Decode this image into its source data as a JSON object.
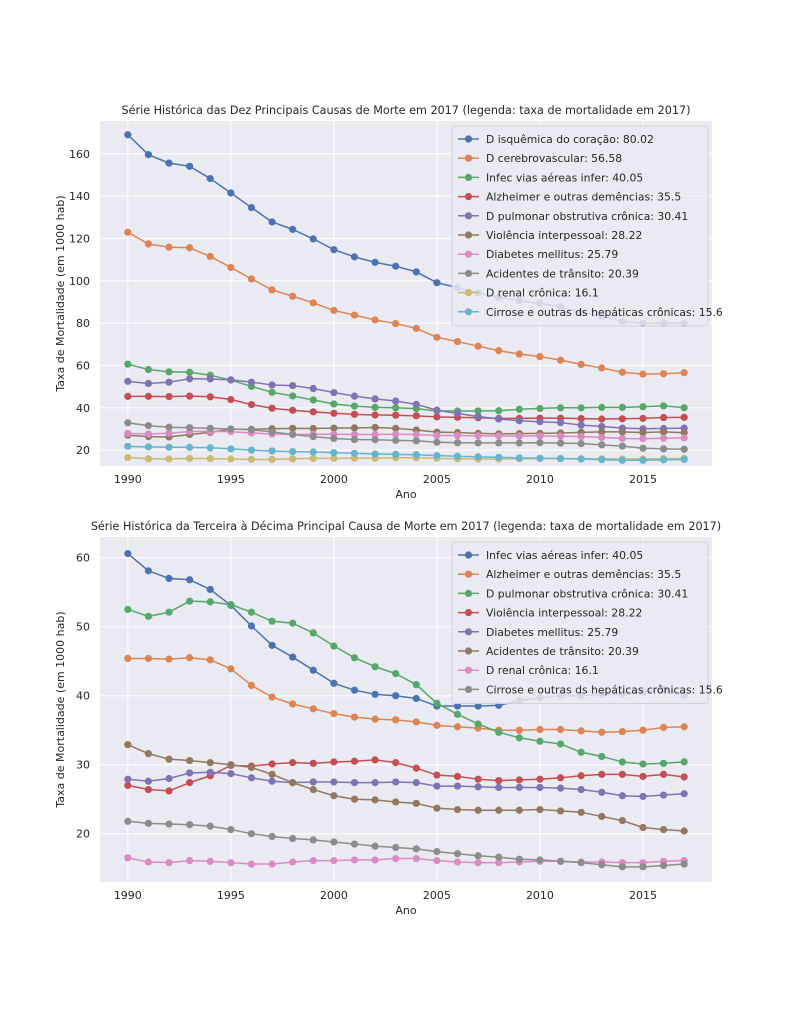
{
  "chart_data": [
    {
      "type": "line",
      "title": "Série Histórica das Dez Principais Causas de Morte em 2017 (legenda: taxa de mortalidade em 2017)",
      "xlabel": "Ano",
      "ylabel": "Taxa de Mortalidade (em 1000 hab)",
      "xlim": [
        1988.65,
        2018.35
      ],
      "ylim": [
        12.5,
        175.5
      ],
      "xticks": [
        1990,
        1995,
        2000,
        2005,
        2010,
        2015
      ],
      "yticks": [
        20,
        40,
        60,
        80,
        100,
        120,
        140,
        160
      ],
      "grid": true,
      "legend_position": "upper right",
      "x": [
        1990,
        1991,
        1992,
        1993,
        1994,
        1995,
        1996,
        1997,
        1998,
        1999,
        2000,
        2001,
        2002,
        2003,
        2004,
        2005,
        2006,
        2007,
        2008,
        2009,
        2010,
        2011,
        2012,
        2013,
        2014,
        2015,
        2016,
        2017
      ],
      "series": [
        {
          "name": "D isquêmica do coração: 80.02",
          "color": "#4c72b0",
          "values": [
            169,
            159.6,
            155.6,
            154.1,
            148.3,
            141.5,
            134.6,
            127.8,
            124.3,
            119.8,
            114.7,
            111.3,
            108.7,
            106.9,
            104.2,
            99.1,
            96.8,
            94.2,
            92.2,
            90.6,
            89.3,
            87.7,
            85.1,
            83.2,
            80.8,
            79.9,
            80.0,
            80.02
          ]
        },
        {
          "name": "D cerebrovascular: 56.58",
          "color": "#dd8452",
          "values": [
            122.9,
            117.4,
            115.9,
            115.6,
            111.5,
            106.3,
            100.9,
            95.7,
            92.7,
            89.6,
            86.0,
            83.8,
            81.5,
            79.8,
            77.5,
            73.3,
            71.3,
            69.1,
            67.0,
            65.4,
            64.2,
            62.5,
            60.5,
            58.8,
            56.8,
            55.9,
            56.1,
            56.58
          ]
        },
        {
          "name": "Infec vias aéreas infer: 40.05",
          "color": "#55a868",
          "values": [
            60.6,
            58.1,
            57.0,
            56.8,
            55.4,
            53.1,
            50.1,
            47.3,
            45.6,
            43.7,
            41.8,
            40.8,
            40.2,
            40.0,
            39.6,
            38.5,
            38.5,
            38.5,
            38.6,
            39.3,
            39.7,
            40.0,
            40.0,
            40.2,
            40.2,
            40.5,
            40.9,
            40.05
          ]
        },
        {
          "name": "Alzheimer e outras demências: 35.5",
          "color": "#c44e52",
          "values": [
            45.4,
            45.4,
            45.3,
            45.5,
            45.2,
            43.9,
            41.5,
            39.8,
            38.8,
            38.1,
            37.4,
            36.9,
            36.6,
            36.5,
            36.2,
            35.7,
            35.5,
            35.3,
            35.0,
            35.0,
            35.1,
            35.1,
            34.9,
            34.7,
            34.8,
            35.0,
            35.4,
            35.5
          ]
        },
        {
          "name": "D pulmonar obstrutiva crônica: 30.41",
          "color": "#8172b3",
          "values": [
            52.5,
            51.5,
            52.1,
            53.7,
            53.6,
            53.2,
            52.1,
            50.8,
            50.5,
            49.1,
            47.2,
            45.5,
            44.2,
            43.2,
            41.6,
            38.9,
            37.3,
            35.9,
            34.7,
            33.9,
            33.4,
            33.0,
            31.8,
            31.2,
            30.4,
            30.1,
            30.2,
            30.41
          ]
        },
        {
          "name": "Violência interpessoal: 28.22",
          "color": "#937860",
          "values": [
            27.0,
            26.4,
            26.2,
            27.4,
            28.4,
            29.9,
            29.8,
            30.1,
            30.3,
            30.2,
            30.4,
            30.5,
            30.7,
            30.3,
            29.5,
            28.5,
            28.3,
            27.9,
            27.7,
            27.8,
            27.9,
            28.1,
            28.4,
            28.6,
            28.6,
            28.3,
            28.6,
            28.22
          ]
        },
        {
          "name": "Diabetes mellitus: 25.79",
          "color": "#da8bc3",
          "values": [
            27.9,
            27.6,
            28.0,
            28.8,
            28.9,
            28.7,
            28.1,
            27.6,
            27.4,
            27.5,
            27.5,
            27.4,
            27.4,
            27.5,
            27.4,
            26.9,
            26.9,
            26.8,
            26.7,
            26.7,
            26.7,
            26.6,
            26.4,
            26.0,
            25.5,
            25.4,
            25.6,
            25.79
          ]
        },
        {
          "name": "Acidentes de trânsito: 20.39",
          "color": "#8c8c8c",
          "values": [
            32.9,
            31.6,
            30.8,
            30.6,
            30.3,
            30.0,
            29.6,
            28.6,
            27.4,
            26.4,
            25.5,
            25.0,
            24.9,
            24.6,
            24.4,
            23.7,
            23.5,
            23.4,
            23.4,
            23.4,
            23.5,
            23.3,
            23.1,
            22.5,
            21.9,
            20.9,
            20.6,
            20.39
          ]
        },
        {
          "name": "D renal crônica: 16.1",
          "color": "#ccb974",
          "values": [
            16.5,
            15.9,
            15.8,
            16.1,
            16.0,
            15.8,
            15.6,
            15.6,
            15.9,
            16.1,
            16.1,
            16.2,
            16.2,
            16.4,
            16.4,
            16.1,
            15.9,
            15.8,
            15.8,
            15.9,
            16.0,
            16.0,
            15.9,
            15.9,
            15.8,
            15.8,
            16.0,
            16.1
          ]
        },
        {
          "name": "Cirrose e outras ds hepáticas crônicas: 15.6",
          "color": "#64b5cd",
          "values": [
            21.8,
            21.5,
            21.4,
            21.3,
            21.1,
            20.6,
            20.0,
            19.6,
            19.3,
            19.1,
            18.8,
            18.5,
            18.2,
            18.0,
            17.8,
            17.4,
            17.1,
            16.8,
            16.6,
            16.3,
            16.2,
            16.0,
            15.8,
            15.5,
            15.2,
            15.2,
            15.4,
            15.6
          ]
        }
      ]
    },
    {
      "type": "line",
      "title": "Série Histórica da Terceira à Décima Principal Causa de Morte em 2017 (legenda: taxa de mortalidade em 2017)",
      "xlabel": "Ano",
      "ylabel": "Taxa de Mortalidade (em 1000 hab)",
      "xlim": [
        1988.65,
        2018.35
      ],
      "ylim": [
        13,
        63
      ],
      "xticks": [
        1990,
        1995,
        2000,
        2005,
        2010,
        2015
      ],
      "yticks": [
        20,
        30,
        40,
        50,
        60
      ],
      "grid": true,
      "legend_position": "upper right",
      "x": [
        1990,
        1991,
        1992,
        1993,
        1994,
        1995,
        1996,
        1997,
        1998,
        1999,
        2000,
        2001,
        2002,
        2003,
        2004,
        2005,
        2006,
        2007,
        2008,
        2009,
        2010,
        2011,
        2012,
        2013,
        2014,
        2015,
        2016,
        2017
      ],
      "series": [
        {
          "name": "Infec vias aéreas infer: 40.05",
          "color": "#4c72b0",
          "values": [
            60.6,
            58.1,
            57.0,
            56.8,
            55.4,
            53.1,
            50.1,
            47.3,
            45.6,
            43.7,
            41.8,
            40.8,
            40.2,
            40.0,
            39.6,
            38.5,
            38.5,
            38.5,
            38.6,
            39.3,
            39.7,
            40.0,
            40.0,
            40.2,
            40.2,
            40.5,
            40.9,
            40.05
          ]
        },
        {
          "name": "Alzheimer e outras demências: 35.5",
          "color": "#dd8452",
          "values": [
            45.4,
            45.4,
            45.3,
            45.5,
            45.2,
            43.9,
            41.5,
            39.8,
            38.8,
            38.1,
            37.4,
            36.9,
            36.6,
            36.5,
            36.2,
            35.7,
            35.5,
            35.3,
            35.0,
            35.0,
            35.1,
            35.1,
            34.9,
            34.7,
            34.8,
            35.0,
            35.4,
            35.5
          ]
        },
        {
          "name": "D pulmonar obstrutiva crônica: 30.41",
          "color": "#55a868",
          "values": [
            52.5,
            51.5,
            52.1,
            53.7,
            53.6,
            53.2,
            52.1,
            50.8,
            50.5,
            49.1,
            47.2,
            45.5,
            44.2,
            43.2,
            41.6,
            38.9,
            37.3,
            35.9,
            34.7,
            33.9,
            33.4,
            33.0,
            31.8,
            31.2,
            30.4,
            30.1,
            30.2,
            30.41
          ]
        },
        {
          "name": "Violência interpessoal: 28.22",
          "color": "#c44e52",
          "values": [
            27.0,
            26.4,
            26.2,
            27.4,
            28.4,
            29.9,
            29.8,
            30.1,
            30.3,
            30.2,
            30.4,
            30.5,
            30.7,
            30.3,
            29.5,
            28.5,
            28.3,
            27.9,
            27.7,
            27.8,
            27.9,
            28.1,
            28.4,
            28.6,
            28.6,
            28.3,
            28.6,
            28.22
          ]
        },
        {
          "name": "Diabetes mellitus: 25.79",
          "color": "#8172b3",
          "values": [
            27.9,
            27.6,
            28.0,
            28.8,
            28.9,
            28.7,
            28.1,
            27.6,
            27.4,
            27.5,
            27.5,
            27.4,
            27.4,
            27.5,
            27.4,
            26.9,
            26.9,
            26.8,
            26.7,
            26.7,
            26.7,
            26.6,
            26.4,
            26.0,
            25.5,
            25.4,
            25.6,
            25.79
          ]
        },
        {
          "name": "Acidentes de trânsito: 20.39",
          "color": "#937860",
          "values": [
            32.9,
            31.6,
            30.8,
            30.6,
            30.3,
            30.0,
            29.6,
            28.6,
            27.4,
            26.4,
            25.5,
            25.0,
            24.9,
            24.6,
            24.4,
            23.7,
            23.5,
            23.4,
            23.4,
            23.4,
            23.5,
            23.3,
            23.1,
            22.5,
            21.9,
            20.9,
            20.6,
            20.39
          ]
        },
        {
          "name": "D renal crônica: 16.1",
          "color": "#da8bc3",
          "values": [
            16.5,
            15.9,
            15.8,
            16.1,
            16.0,
            15.8,
            15.6,
            15.6,
            15.9,
            16.1,
            16.1,
            16.2,
            16.2,
            16.4,
            16.4,
            16.1,
            15.9,
            15.8,
            15.8,
            15.9,
            16.0,
            16.0,
            15.9,
            15.9,
            15.8,
            15.8,
            16.0,
            16.1
          ]
        },
        {
          "name": "Cirrose e outras ds hepáticas crônicas: 15.6",
          "color": "#8c8c8c",
          "values": [
            21.8,
            21.5,
            21.4,
            21.3,
            21.1,
            20.6,
            20.0,
            19.6,
            19.3,
            19.1,
            18.8,
            18.5,
            18.2,
            18.0,
            17.8,
            17.4,
            17.1,
            16.8,
            16.6,
            16.3,
            16.2,
            16.0,
            15.8,
            15.5,
            15.2,
            15.2,
            15.4,
            15.6
          ]
        }
      ]
    }
  ]
}
